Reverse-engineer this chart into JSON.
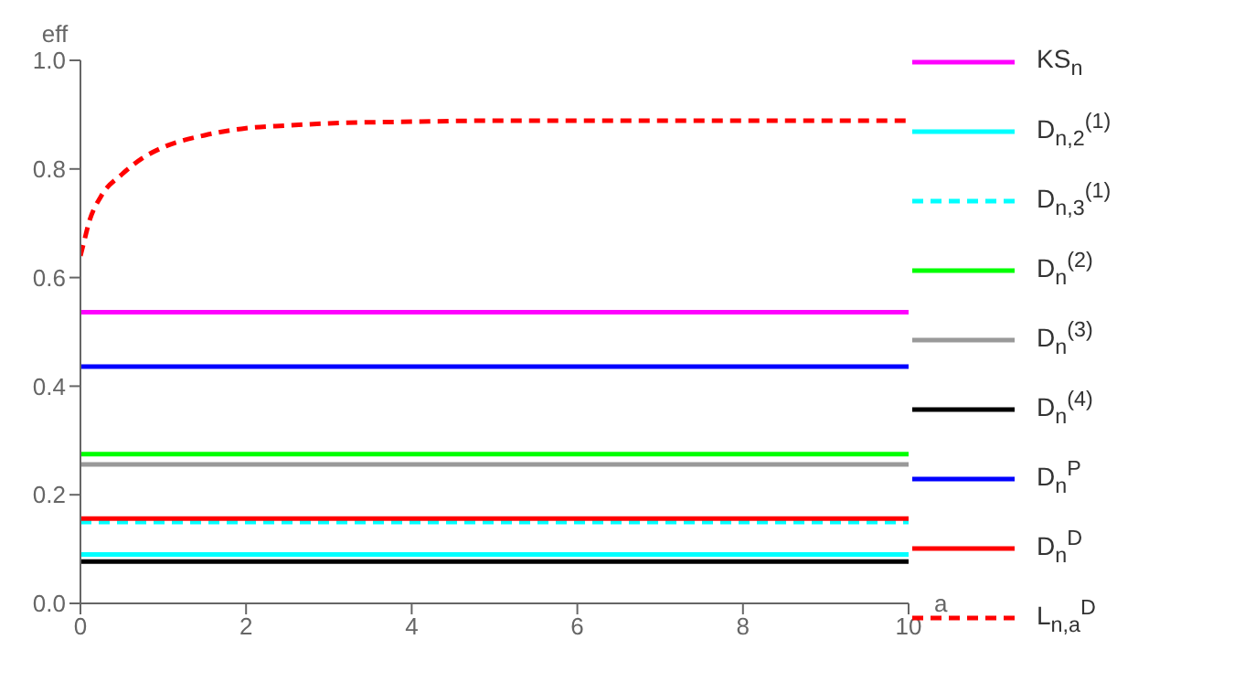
{
  "chart_data": {
    "type": "line",
    "xlabel": "a",
    "ylabel": "eff",
    "xlim": [
      0,
      10
    ],
    "ylim": [
      0,
      1
    ],
    "xticks": [
      0,
      2,
      4,
      6,
      8,
      10
    ],
    "yticks": [
      {
        "value": 0,
        "label": "0.0"
      },
      {
        "value": 0.2,
        "label": "0.2"
      },
      {
        "value": 0.4,
        "label": "0.4"
      },
      {
        "value": 0.6,
        "label": "0.6"
      },
      {
        "value": 0.8,
        "label": "0.8"
      },
      {
        "value": 1,
        "label": "1.0"
      }
    ],
    "legend": "right",
    "marker": "none",
    "series": [
      {
        "name": "KS$_{n}$",
        "color": "#ff00ff",
        "x": [
          0,
          10
        ],
        "values": [
          0.536,
          0.536
        ]
      },
      {
        "name": "D$_{n,2}$$^{(1)}$",
        "color": "#00ffff",
        "x": [
          0,
          10
        ],
        "values": [
          0.09,
          0.09
        ]
      },
      {
        "name": "D$_{n,3}$$^{(1)}$",
        "color": "#00ffff",
        "line_style": "dashed",
        "x": [
          0,
          10
        ],
        "values": [
          0.15,
          0.15
        ]
      },
      {
        "name": "D$_{n}$$^{(2)}$",
        "color": "#00ff00",
        "x": [
          0,
          10
        ],
        "values": [
          0.275,
          0.275
        ]
      },
      {
        "name": "D$_{n}$$^{(3)}$",
        "color": "#999999",
        "x": [
          0,
          10
        ],
        "values": [
          0.256,
          0.256
        ]
      },
      {
        "name": "D$_{n}$$^{(4)}$",
        "color": "#000000",
        "x": [
          0,
          10
        ],
        "values": [
          0.077,
          0.077
        ]
      },
      {
        "name": "D$_{n}$$^{P}$",
        "color": "#0000ff",
        "x": [
          0,
          10
        ],
        "values": [
          0.436,
          0.436
        ]
      },
      {
        "name": "D$_{n}$$^{D}$",
        "color": "#ff0000",
        "x": [
          0,
          10
        ],
        "values": [
          0.156,
          0.156
        ]
      },
      {
        "name": "L$_{n,a}$$^{D}$",
        "color": "#ff0000",
        "line_style": "dashed",
        "x": [
          0,
          0.05,
          0.1,
          0.25,
          0.5,
          0.75,
          1,
          1.5,
          2,
          2.5,
          3,
          4,
          5,
          6,
          8,
          10
        ],
        "values": [
          0.64,
          0.67,
          0.7,
          0.75,
          0.79,
          0.82,
          0.84,
          0.862,
          0.875,
          0.88,
          0.884,
          0.887,
          0.889,
          0.889,
          0.889,
          0.889
        ]
      }
    ]
  }
}
